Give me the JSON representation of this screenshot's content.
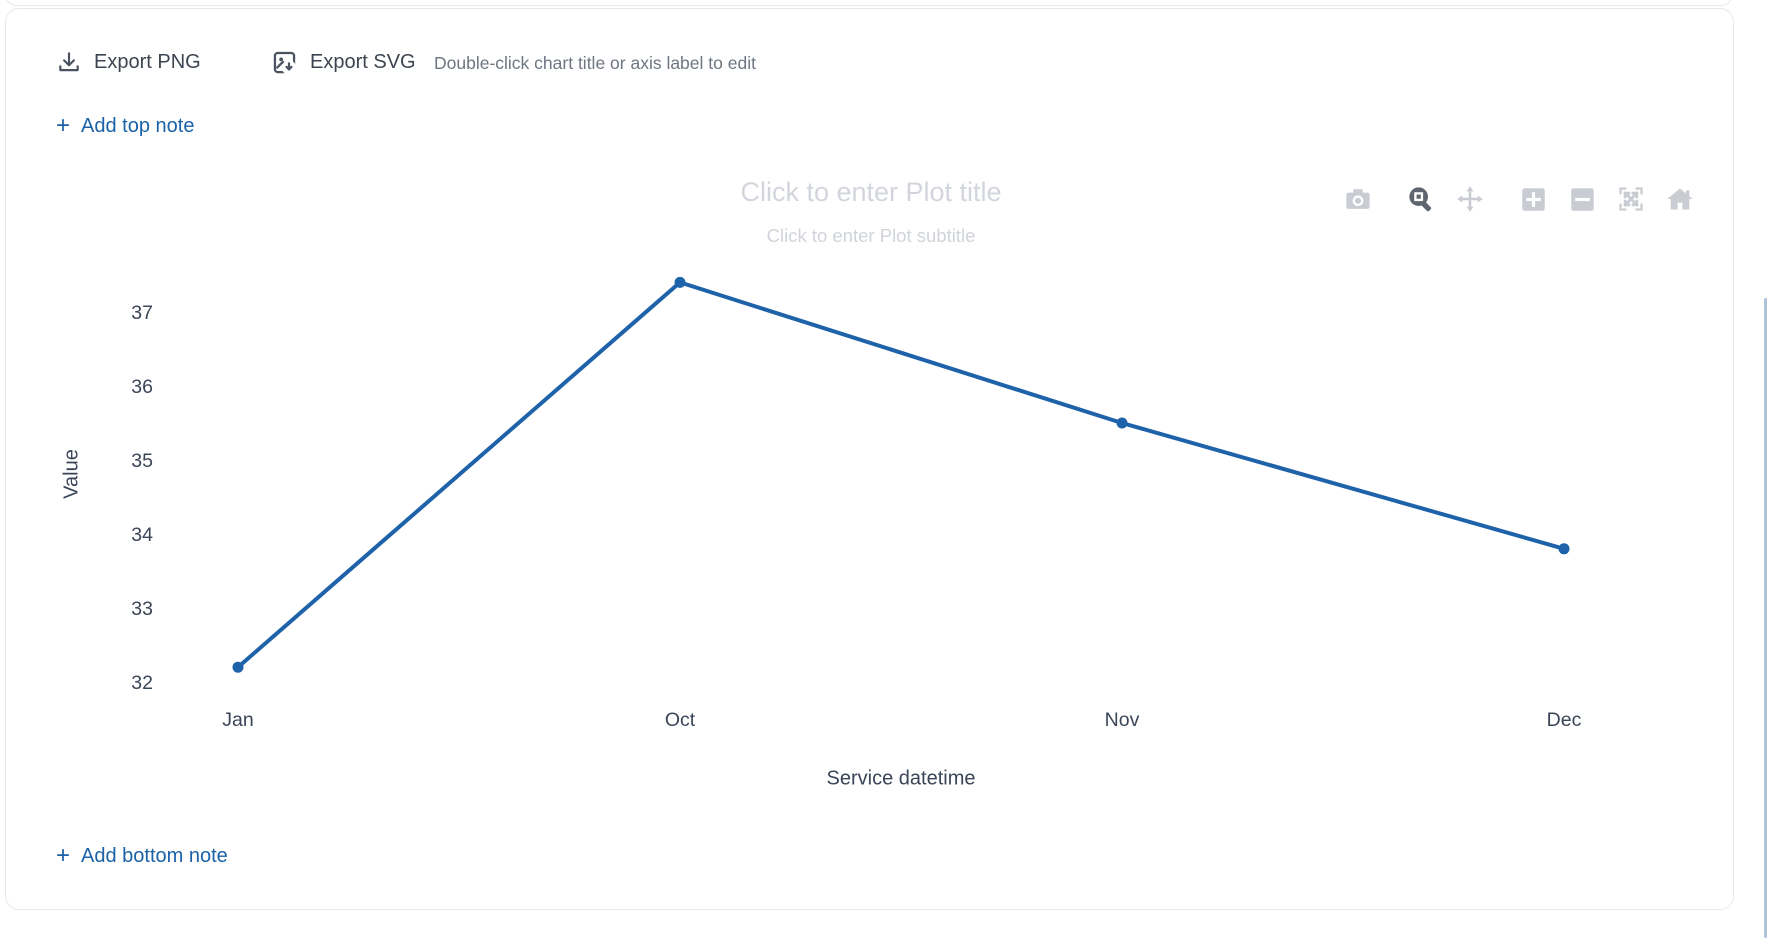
{
  "toolbar": {
    "export_png_label": "Export PNG",
    "export_svg_label": "Export SVG",
    "hint": "Double-click chart title or axis label to edit"
  },
  "notes": {
    "plus": "+",
    "add_top_label": "Add top note",
    "add_bottom_label": "Add bottom note"
  },
  "plot": {
    "title_placeholder": "Click to enter Plot title",
    "subtitle_placeholder": "Click to enter Plot subtitle"
  },
  "modebar_icons": [
    "camera",
    "zoom",
    "pan",
    "zoom-in",
    "zoom-out",
    "autoscale",
    "reset-axes-home"
  ],
  "chart_data": {
    "type": "line",
    "categories": [
      "Jan",
      "Oct",
      "Nov",
      "Dec"
    ],
    "series": [
      {
        "name": "Value",
        "values": [
          32.2,
          37.4,
          35.5,
          33.8
        ]
      }
    ],
    "title": "",
    "subtitle": "",
    "xlabel": "Service datetime",
    "ylabel": "Value",
    "yticks": [
      37,
      36,
      35,
      34,
      33,
      32
    ],
    "ylim": [
      31.7,
      37.6
    ],
    "grid": false,
    "legend": false,
    "markers": true,
    "line_color": "#1e62a9"
  },
  "colors": {
    "accent_blue": "#1a62a8",
    "line_blue": "#1e62a9",
    "tick_text": "#3a4557",
    "muted_text": "#6e7681",
    "placeholder_text": "#d2d6dc",
    "card_border": "#e6e8ec",
    "modebar_icon": "#c9cdd3",
    "modebar_icon_active": "#60666f"
  }
}
